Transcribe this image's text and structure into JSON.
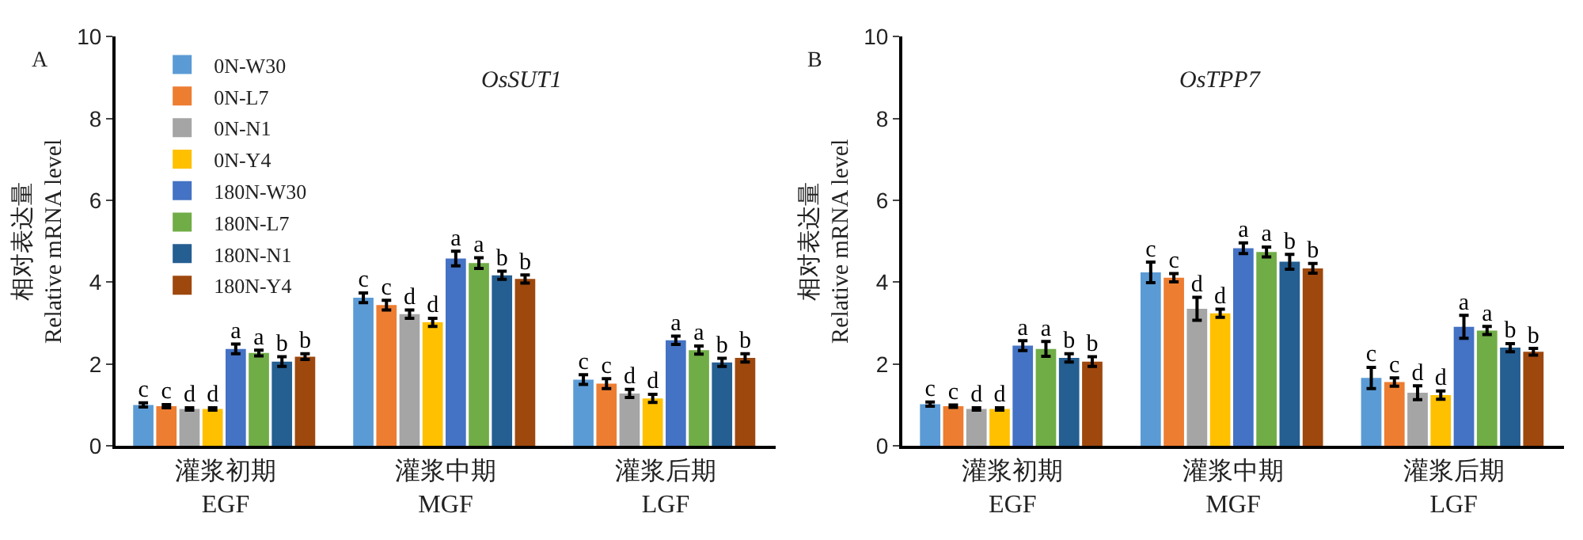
{
  "chart_data": [
    {
      "type": "bar",
      "title": "OsSUT1",
      "annotations": [
        "A"
      ],
      "ylabel": "相对表达量\nRelative mRNA level",
      "categories": [
        "灌浆初期\nEGF",
        "灌浆中期\nMGF",
        "灌浆后期\nLGF"
      ],
      "ylim": [
        0,
        10
      ],
      "yticks": [
        0,
        2,
        4,
        6,
        8,
        10
      ],
      "legend": "top left",
      "series": [
        {
          "name": "0N-W30",
          "color": "#5b9bd5",
          "values": [
            1.0,
            3.62,
            1.62
          ],
          "errors": [
            0.05,
            0.12,
            0.12
          ],
          "value_labels": [
            "c",
            "c",
            "c"
          ]
        },
        {
          "name": "0N-L7",
          "color": "#ed7d31",
          "values": [
            0.97,
            3.44,
            1.52
          ],
          "errors": [
            0.04,
            0.12,
            0.12
          ],
          "value_labels": [
            "c",
            "c",
            "c"
          ]
        },
        {
          "name": "0N-N1",
          "color": "#a5a5a5",
          "values": [
            0.9,
            3.22,
            1.28
          ],
          "errors": [
            0.03,
            0.1,
            0.1
          ],
          "value_labels": [
            "d",
            "d",
            "d"
          ]
        },
        {
          "name": "0N-Y4",
          "color": "#ffc000",
          "values": [
            0.9,
            3.02,
            1.16
          ],
          "errors": [
            0.03,
            0.1,
            0.1
          ],
          "value_labels": [
            "d",
            "d",
            "d"
          ]
        },
        {
          "name": "180N-W30",
          "color": "#4472c4",
          "values": [
            2.37,
            4.58,
            2.58
          ],
          "errors": [
            0.12,
            0.18,
            0.1
          ],
          "value_labels": [
            "a",
            "a",
            "a"
          ]
        },
        {
          "name": "180N-L7",
          "color": "#70ad47",
          "values": [
            2.27,
            4.47,
            2.34
          ],
          "errors": [
            0.07,
            0.13,
            0.1
          ],
          "value_labels": [
            "a",
            "a",
            "a"
          ]
        },
        {
          "name": "180N-N1",
          "color": "#255e91",
          "values": [
            2.06,
            4.17,
            2.04
          ],
          "errors": [
            0.12,
            0.1,
            0.1
          ],
          "value_labels": [
            "b",
            "b",
            "b"
          ]
        },
        {
          "name": "180N-Y4",
          "color": "#9e480e",
          "values": [
            2.18,
            4.08,
            2.15
          ],
          "errors": [
            0.07,
            0.1,
            0.1
          ],
          "value_labels": [
            "b",
            "b",
            "b"
          ]
        }
      ]
    },
    {
      "type": "bar",
      "title": "OsTPP7",
      "annotations": [
        "B"
      ],
      "ylabel": "相对表达量\nRelative mRNA level",
      "categories": [
        "灌浆初期\nEGF",
        "灌浆中期\nMGF",
        "灌浆后期\nLGF"
      ],
      "ylim": [
        0,
        10
      ],
      "yticks": [
        0,
        2,
        4,
        6,
        8,
        10
      ],
      "legend": false,
      "series": [
        {
          "color": "#5b9bd5",
          "values": [
            1.02,
            4.24,
            1.66
          ],
          "errors": [
            0.05,
            0.25,
            0.26
          ],
          "value_labels": [
            "c",
            "c",
            "c"
          ]
        },
        {
          "color": "#ed7d31",
          "values": [
            0.97,
            4.11,
            1.56
          ],
          "errors": [
            0.03,
            0.1,
            0.1
          ],
          "value_labels": [
            "c",
            "c",
            "c"
          ]
        },
        {
          "color": "#a5a5a5",
          "values": [
            0.9,
            3.35,
            1.3
          ],
          "errors": [
            0.03,
            0.28,
            0.17
          ],
          "value_labels": [
            "d",
            "d",
            "d"
          ]
        },
        {
          "color": "#ffc000",
          "values": [
            0.9,
            3.24,
            1.24
          ],
          "errors": [
            0.03,
            0.1,
            0.1
          ],
          "value_labels": [
            "d",
            "d",
            "d"
          ]
        },
        {
          "color": "#4472c4",
          "values": [
            2.45,
            4.83,
            2.91
          ],
          "errors": [
            0.12,
            0.13,
            0.28
          ],
          "value_labels": [
            "a",
            "a",
            "a"
          ]
        },
        {
          "color": "#70ad47",
          "values": [
            2.37,
            4.74,
            2.82
          ],
          "errors": [
            0.18,
            0.12,
            0.1
          ],
          "value_labels": [
            "a",
            "a",
            "a"
          ]
        },
        {
          "color": "#255e91",
          "values": [
            2.15,
            4.5,
            2.4
          ],
          "errors": [
            0.1,
            0.18,
            0.1
          ],
          "value_labels": [
            "b",
            "b",
            "b"
          ]
        },
        {
          "color": "#9e480e",
          "values": [
            2.06,
            4.34,
            2.3
          ],
          "errors": [
            0.12,
            0.12,
            0.08
          ],
          "value_labels": [
            "b",
            "b",
            "b"
          ]
        }
      ]
    }
  ]
}
